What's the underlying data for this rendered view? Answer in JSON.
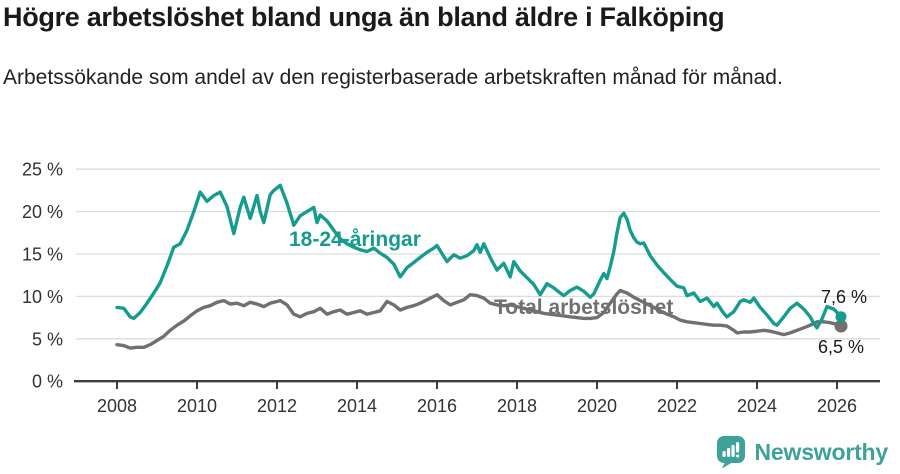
{
  "header": {
    "title": "Högre arbetslöshet bland unga än bland äldre i Falköping",
    "subtitle": "Arbetssökande som andel av den registerbaserade arbetskraften månad för månad."
  },
  "footer": {
    "brand": "Newsworthy",
    "brand_color": "#3fa29a",
    "logo_icon": "newsworthy-speech-bubble-bar-chart-icon"
  },
  "chart_data": {
    "type": "line",
    "title": "Högre arbetslöshet bland unga än bland äldre i Falköping",
    "subtitle": "Arbetssökande som andel av den registerbaserade arbetskraften månad för månad.",
    "xlabel": "",
    "ylabel": "",
    "grid": "horizontal",
    "legend_position": "inline-labels",
    "xlim": [
      2007.0,
      2027.1
    ],
    "ylim": [
      0,
      25
    ],
    "x_ticks": [
      2008,
      2010,
      2012,
      2014,
      2016,
      2018,
      2020,
      2022,
      2024,
      2026
    ],
    "y_ticks": [
      0,
      5,
      10,
      15,
      20,
      25
    ],
    "y_tick_suffix": " %",
    "colors": {
      "young": "#169c8e",
      "total": "#707070",
      "gridline": "#dcdcdc",
      "axis": "#3c3c3c",
      "tick_text": "#333333",
      "annotation_text": "#1a1a1a"
    },
    "series": [
      {
        "name": "18-24-åringar",
        "color": "#169c8e",
        "end_label": "7,6 %",
        "end_value": 7.6,
        "points": [
          [
            2008.0,
            8.7
          ],
          [
            2008.17,
            8.6
          ],
          [
            2008.33,
            7.6
          ],
          [
            2008.42,
            7.4
          ],
          [
            2008.58,
            8.1
          ],
          [
            2008.75,
            9.2
          ],
          [
            2008.92,
            10.4
          ],
          [
            2009.08,
            11.6
          ],
          [
            2009.25,
            13.6
          ],
          [
            2009.42,
            15.8
          ],
          [
            2009.58,
            16.2
          ],
          [
            2009.75,
            17.8
          ],
          [
            2009.92,
            20.0
          ],
          [
            2010.08,
            22.3
          ],
          [
            2010.25,
            21.2
          ],
          [
            2010.42,
            21.9
          ],
          [
            2010.58,
            22.3
          ],
          [
            2010.75,
            20.6
          ],
          [
            2010.92,
            17.4
          ],
          [
            2011.08,
            20.5
          ],
          [
            2011.17,
            21.7
          ],
          [
            2011.33,
            19.2
          ],
          [
            2011.5,
            21.9
          ],
          [
            2011.58,
            20.0
          ],
          [
            2011.67,
            18.7
          ],
          [
            2011.83,
            22.0
          ],
          [
            2011.92,
            22.5
          ],
          [
            2012.08,
            23.1
          ],
          [
            2012.25,
            21.0
          ],
          [
            2012.42,
            18.4
          ],
          [
            2012.58,
            19.5
          ],
          [
            2012.75,
            20.0
          ],
          [
            2012.92,
            20.5
          ],
          [
            2013.0,
            18.7
          ],
          [
            2013.08,
            19.6
          ],
          [
            2013.25,
            18.9
          ],
          [
            2013.42,
            17.8
          ],
          [
            2013.58,
            16.8
          ],
          [
            2013.75,
            16.2
          ],
          [
            2013.92,
            15.8
          ],
          [
            2014.08,
            15.5
          ],
          [
            2014.25,
            15.3
          ],
          [
            2014.42,
            15.7
          ],
          [
            2014.58,
            15.1
          ],
          [
            2014.75,
            14.6
          ],
          [
            2014.92,
            13.8
          ],
          [
            2015.08,
            12.3
          ],
          [
            2015.25,
            13.4
          ],
          [
            2015.42,
            14.0
          ],
          [
            2015.58,
            14.6
          ],
          [
            2015.75,
            15.2
          ],
          [
            2015.92,
            15.7
          ],
          [
            2016.0,
            16.0
          ],
          [
            2016.17,
            14.7
          ],
          [
            2016.25,
            14.1
          ],
          [
            2016.42,
            14.9
          ],
          [
            2016.58,
            14.5
          ],
          [
            2016.75,
            14.8
          ],
          [
            2016.92,
            15.4
          ],
          [
            2017.0,
            16.1
          ],
          [
            2017.08,
            15.2
          ],
          [
            2017.17,
            16.2
          ],
          [
            2017.33,
            14.6
          ],
          [
            2017.5,
            13.1
          ],
          [
            2017.67,
            13.9
          ],
          [
            2017.83,
            12.3
          ],
          [
            2017.92,
            14.1
          ],
          [
            2018.08,
            13.0
          ],
          [
            2018.25,
            12.2
          ],
          [
            2018.42,
            11.4
          ],
          [
            2018.58,
            10.2
          ],
          [
            2018.75,
            11.5
          ],
          [
            2018.92,
            11.0
          ],
          [
            2019.08,
            10.4
          ],
          [
            2019.17,
            10.1
          ],
          [
            2019.33,
            10.7
          ],
          [
            2019.5,
            11.1
          ],
          [
            2019.67,
            10.6
          ],
          [
            2019.83,
            9.9
          ],
          [
            2019.92,
            10.3
          ],
          [
            2020.08,
            11.9
          ],
          [
            2020.17,
            12.7
          ],
          [
            2020.25,
            12.1
          ],
          [
            2020.33,
            13.5
          ],
          [
            2020.42,
            15.3
          ],
          [
            2020.5,
            17.5
          ],
          [
            2020.58,
            19.3
          ],
          [
            2020.67,
            19.8
          ],
          [
            2020.75,
            19.1
          ],
          [
            2020.83,
            17.8
          ],
          [
            2020.92,
            16.9
          ],
          [
            2021.0,
            16.4
          ],
          [
            2021.08,
            16.2
          ],
          [
            2021.17,
            16.3
          ],
          [
            2021.33,
            14.8
          ],
          [
            2021.5,
            13.7
          ],
          [
            2021.67,
            12.8
          ],
          [
            2021.83,
            12.0
          ],
          [
            2022.0,
            11.2
          ],
          [
            2022.17,
            11.0
          ],
          [
            2022.25,
            10.1
          ],
          [
            2022.42,
            10.4
          ],
          [
            2022.58,
            9.4
          ],
          [
            2022.75,
            9.8
          ],
          [
            2022.92,
            8.8
          ],
          [
            2023.0,
            9.2
          ],
          [
            2023.17,
            8.0
          ],
          [
            2023.25,
            7.6
          ],
          [
            2023.42,
            8.2
          ],
          [
            2023.58,
            9.4
          ],
          [
            2023.67,
            9.6
          ],
          [
            2023.83,
            9.3
          ],
          [
            2023.92,
            9.8
          ],
          [
            2024.08,
            8.7
          ],
          [
            2024.25,
            7.8
          ],
          [
            2024.42,
            6.8
          ],
          [
            2024.5,
            6.6
          ],
          [
            2024.67,
            7.6
          ],
          [
            2024.83,
            8.6
          ],
          [
            2025.0,
            9.2
          ],
          [
            2025.17,
            8.5
          ],
          [
            2025.33,
            7.6
          ],
          [
            2025.42,
            6.8
          ],
          [
            2025.5,
            6.3
          ],
          [
            2025.63,
            7.4
          ],
          [
            2025.75,
            8.8
          ],
          [
            2025.92,
            8.5
          ],
          [
            2026.0,
            8.1
          ],
          [
            2026.1,
            7.6
          ]
        ]
      },
      {
        "name": "Total arbetslöshet",
        "color": "#707070",
        "end_label": "6,5 %",
        "end_value": 6.5,
        "points": [
          [
            2008.0,
            4.3
          ],
          [
            2008.17,
            4.2
          ],
          [
            2008.33,
            3.9
          ],
          [
            2008.5,
            4.0
          ],
          [
            2008.67,
            4.0
          ],
          [
            2008.83,
            4.3
          ],
          [
            2009.0,
            4.8
          ],
          [
            2009.17,
            5.3
          ],
          [
            2009.33,
            6.0
          ],
          [
            2009.5,
            6.6
          ],
          [
            2009.67,
            7.1
          ],
          [
            2009.83,
            7.7
          ],
          [
            2010.0,
            8.3
          ],
          [
            2010.17,
            8.7
          ],
          [
            2010.33,
            8.9
          ],
          [
            2010.5,
            9.3
          ],
          [
            2010.67,
            9.5
          ],
          [
            2010.83,
            9.1
          ],
          [
            2011.0,
            9.2
          ],
          [
            2011.17,
            8.9
          ],
          [
            2011.33,
            9.3
          ],
          [
            2011.5,
            9.1
          ],
          [
            2011.67,
            8.8
          ],
          [
            2011.83,
            9.2
          ],
          [
            2012.0,
            9.4
          ],
          [
            2012.08,
            9.5
          ],
          [
            2012.25,
            9.0
          ],
          [
            2012.42,
            7.9
          ],
          [
            2012.58,
            7.6
          ],
          [
            2012.75,
            8.0
          ],
          [
            2012.92,
            8.2
          ],
          [
            2013.08,
            8.6
          ],
          [
            2013.25,
            7.9
          ],
          [
            2013.42,
            8.2
          ],
          [
            2013.58,
            8.4
          ],
          [
            2013.75,
            7.9
          ],
          [
            2013.92,
            8.1
          ],
          [
            2014.08,
            8.3
          ],
          [
            2014.25,
            7.9
          ],
          [
            2014.42,
            8.1
          ],
          [
            2014.58,
            8.3
          ],
          [
            2014.75,
            9.4
          ],
          [
            2014.92,
            9.0
          ],
          [
            2015.08,
            8.4
          ],
          [
            2015.25,
            8.7
          ],
          [
            2015.42,
            8.9
          ],
          [
            2015.58,
            9.2
          ],
          [
            2015.75,
            9.6
          ],
          [
            2015.92,
            10.0
          ],
          [
            2016.0,
            10.2
          ],
          [
            2016.17,
            9.5
          ],
          [
            2016.33,
            9.0
          ],
          [
            2016.5,
            9.3
          ],
          [
            2016.67,
            9.6
          ],
          [
            2016.83,
            10.2
          ],
          [
            2017.0,
            10.1
          ],
          [
            2017.17,
            9.8
          ],
          [
            2017.33,
            9.2
          ],
          [
            2017.5,
            9.0
          ],
          [
            2017.67,
            8.9
          ],
          [
            2017.83,
            9.0
          ],
          [
            2018.0,
            8.8
          ],
          [
            2018.17,
            8.6
          ],
          [
            2018.33,
            8.4
          ],
          [
            2018.5,
            8.2
          ],
          [
            2018.67,
            8.0
          ],
          [
            2018.83,
            7.9
          ],
          [
            2019.0,
            7.8
          ],
          [
            2019.17,
            7.7
          ],
          [
            2019.33,
            7.6
          ],
          [
            2019.5,
            7.5
          ],
          [
            2019.67,
            7.4
          ],
          [
            2019.83,
            7.4
          ],
          [
            2020.0,
            7.5
          ],
          [
            2020.17,
            8.1
          ],
          [
            2020.33,
            9.2
          ],
          [
            2020.5,
            10.3
          ],
          [
            2020.58,
            10.7
          ],
          [
            2020.75,
            10.4
          ],
          [
            2020.92,
            9.9
          ],
          [
            2021.08,
            9.5
          ],
          [
            2021.25,
            9.1
          ],
          [
            2021.42,
            8.7
          ],
          [
            2021.58,
            8.3
          ],
          [
            2021.75,
            7.9
          ],
          [
            2021.92,
            7.6
          ],
          [
            2022.08,
            7.2
          ],
          [
            2022.25,
            7.0
          ],
          [
            2022.42,
            6.9
          ],
          [
            2022.58,
            6.8
          ],
          [
            2022.75,
            6.7
          ],
          [
            2022.92,
            6.6
          ],
          [
            2023.08,
            6.6
          ],
          [
            2023.25,
            6.5
          ],
          [
            2023.42,
            6.0
          ],
          [
            2023.5,
            5.7
          ],
          [
            2023.67,
            5.8
          ],
          [
            2023.83,
            5.8
          ],
          [
            2024.0,
            5.9
          ],
          [
            2024.17,
            6.0
          ],
          [
            2024.33,
            5.9
          ],
          [
            2024.5,
            5.7
          ],
          [
            2024.67,
            5.5
          ],
          [
            2024.83,
            5.7
          ],
          [
            2025.0,
            6.0
          ],
          [
            2025.17,
            6.3
          ],
          [
            2025.33,
            6.6
          ],
          [
            2025.5,
            7.0
          ],
          [
            2025.67,
            7.0
          ],
          [
            2025.83,
            6.9
          ],
          [
            2026.0,
            6.7
          ],
          [
            2026.1,
            6.5
          ]
        ]
      }
    ]
  }
}
